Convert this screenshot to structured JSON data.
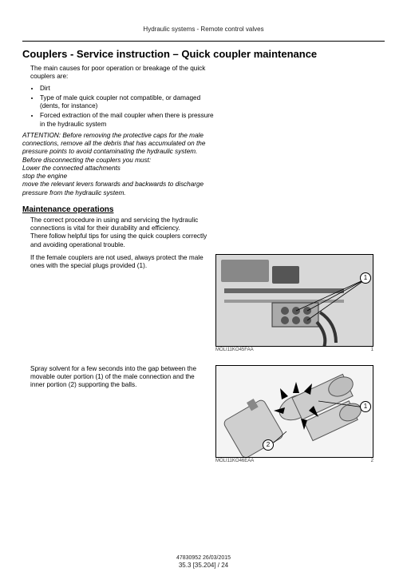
{
  "header": "Hydraulic systems - Remote control valves",
  "title": "Couplers - Service instruction – Quick coupler maintenance",
  "intro": "The main causes for poor operation or breakage of the quick couplers are:",
  "causes": [
    "Dirt",
    "Type of male quick coupler not compatible, or damaged (dents, for instance)",
    "Forced extraction of the mail coupler when there is pressure in the hydraulic system"
  ],
  "attention": "ATTENTION: Before removing the protective caps for the male connections, remove all the debris that has accumulated on the pressure points to avoid contaminating the hydraulic system.\nBefore disconnecting the couplers you must:\nLower the connected attachments\nstop the engine\nmove the relevant levers forwards and backwards to discharge pressure from the hydraulic system.",
  "maint_heading": "Maintenance operations",
  "maint_intro": "The correct procedure in using and servicing the hydraulic connections is vital for their durability and efficiency.\nThere follow helpful tips for using the quick couplers correctly and avoiding operational trouble.",
  "tip1": "If the female couplers are not used, always protect the male ones with the special plugs provided (1).",
  "tip2": "Spray solvent for a few seconds into the gap between the movable outer portion (1) of the male connection and the inner portion (2) supporting the balls.",
  "fig1": {
    "code": "MOLI11KO45FAA",
    "num": "1",
    "callout1": "1"
  },
  "fig2": {
    "code": "MOLI11KO46EAA",
    "num": "2",
    "callout1": "1",
    "callout2": "2"
  },
  "footer_line1": "47830952 26/03/2015",
  "footer_line2": "35.3 [35.204] / 24"
}
